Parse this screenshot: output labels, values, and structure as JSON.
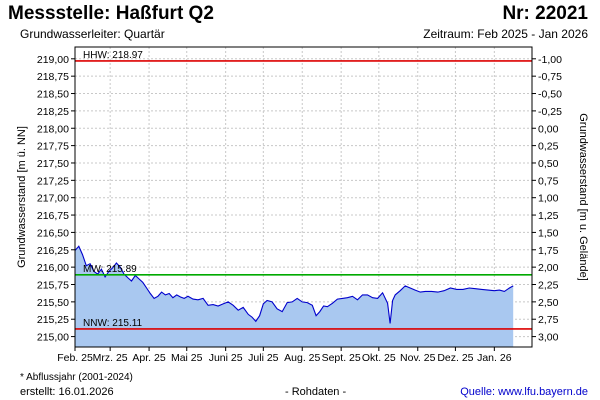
{
  "header": {
    "title": "Messstelle: Haßfurt Q2",
    "subtitle": "Grundwasserleiter: Quartär",
    "station_number": "Nr: 22021",
    "period": "Zeitraum: Feb 2025 - Jan 2026"
  },
  "footer": {
    "footnote": "* Abflussjahr (2001-2024)",
    "created": "erstellt:  16.01.2026",
    "rawdata": "- Rohdaten -",
    "source": "Quelle:  www.lfu.bayern.de"
  },
  "colors": {
    "fill": "#a9c8f0",
    "line": "#0000cc",
    "hhw": "#dd0000",
    "nnw": "#dd0000",
    "mw": "#00aa00",
    "grid": "#c8c8c8"
  },
  "chart_data": {
    "type": "area",
    "xlabel": "",
    "ylabel": "Grundwasserstand [m ü. NN]",
    "y2label": "Grundwasserstand [m u. Gelände]",
    "ylim": [
      214.85,
      219.17
    ],
    "yticks": [
      219.0,
      218.75,
      218.5,
      218.25,
      218.0,
      217.75,
      217.5,
      217.25,
      217.0,
      216.75,
      216.5,
      216.25,
      216.0,
      215.75,
      215.5,
      215.25,
      215.0
    ],
    "ytick_labels": [
      "219,00",
      "218,75",
      "218,50",
      "218,25",
      "218,00",
      "217,75",
      "217,50",
      "217,25",
      "217,00",
      "216,75",
      "216,50",
      "216,25",
      "216,00",
      "215,75",
      "215,50",
      "215,25",
      "215,00"
    ],
    "y2ticks": [
      -1.0,
      -0.75,
      -0.5,
      -0.25,
      0.0,
      0.25,
      0.5,
      0.75,
      1.0,
      1.25,
      1.5,
      1.75,
      2.0,
      2.25,
      2.5,
      2.75,
      3.0
    ],
    "y2tick_labels": [
      "-1,00",
      "-0,75",
      "-0,50",
      "-0,25",
      "0,00",
      "0,25",
      "0,50",
      "0,75",
      "1,00",
      "1,25",
      "1,50",
      "1,75",
      "2,00",
      "2,25",
      "2,50",
      "2,75",
      "3,00"
    ],
    "y2_reference": 218.0,
    "xlim": [
      "2025-02-01",
      "2026-01-31"
    ],
    "xticks": [
      {
        "label": "Feb. 25",
        "date": "2025-02-01"
      },
      {
        "label": "Mrz. 25",
        "date": "2025-03-01"
      },
      {
        "label": "Apr. 25",
        "date": "2025-04-01"
      },
      {
        "label": "Mai 25",
        "date": "2025-05-01"
      },
      {
        "label": "Juni 25",
        "date": "2025-06-01"
      },
      {
        "label": "Juli 25",
        "date": "2025-07-01"
      },
      {
        "label": "Aug. 25",
        "date": "2025-08-01"
      },
      {
        "label": "Sept. 25",
        "date": "2025-09-01"
      },
      {
        "label": "Okt. 25",
        "date": "2025-10-01"
      },
      {
        "label": "Nov. 25",
        "date": "2025-11-01"
      },
      {
        "label": "Dez. 25",
        "date": "2025-12-01"
      },
      {
        "label": "Jan. 26",
        "date": "2026-01-01"
      }
    ],
    "grid": true,
    "reference_lines": [
      {
        "name": "HHW",
        "label": "HHW: 218.97",
        "value": 218.97,
        "color": "#dd0000"
      },
      {
        "name": "MW",
        "label": "MW: 215.89",
        "value": 215.89,
        "color": "#00aa00"
      },
      {
        "name": "NNW",
        "label": "NNW: 215.11",
        "value": 215.11,
        "color": "#dd0000"
      }
    ],
    "series": [
      {
        "x": [
          "2025-02-01",
          "2025-02-04",
          "2025-02-07",
          "2025-02-10",
          "2025-02-13",
          "2025-02-16",
          "2025-02-19",
          "2025-02-22",
          "2025-02-25",
          "2025-02-28",
          "2025-03-03",
          "2025-03-06",
          "2025-03-09",
          "2025-03-12",
          "2025-03-15",
          "2025-03-18",
          "2025-03-21",
          "2025-03-24",
          "2025-03-27",
          "2025-03-30",
          "2025-04-02",
          "2025-04-05",
          "2025-04-08",
          "2025-04-11",
          "2025-04-14",
          "2025-04-17",
          "2025-04-20",
          "2025-04-23",
          "2025-04-26",
          "2025-04-29",
          "2025-05-02",
          "2025-05-06",
          "2025-05-10",
          "2025-05-14",
          "2025-05-18",
          "2025-05-22",
          "2025-05-26",
          "2025-05-30",
          "2025-06-03",
          "2025-06-07",
          "2025-06-11",
          "2025-06-15",
          "2025-06-19",
          "2025-06-22",
          "2025-06-25",
          "2025-06-28",
          "2025-07-01",
          "2025-07-04",
          "2025-07-08",
          "2025-07-12",
          "2025-07-16",
          "2025-07-20",
          "2025-07-24",
          "2025-07-28",
          "2025-08-01",
          "2025-08-05",
          "2025-08-09",
          "2025-08-12",
          "2025-08-15",
          "2025-08-18",
          "2025-08-21",
          "2025-08-25",
          "2025-08-29",
          "2025-09-02",
          "2025-09-06",
          "2025-09-10",
          "2025-09-14",
          "2025-09-18",
          "2025-09-22",
          "2025-09-26",
          "2025-09-30",
          "2025-10-04",
          "2025-10-08",
          "2025-10-10",
          "2025-10-12",
          "2025-10-14",
          "2025-10-18",
          "2025-10-22",
          "2025-10-26",
          "2025-10-30",
          "2025-11-03",
          "2025-11-07",
          "2025-11-12",
          "2025-11-17",
          "2025-11-22",
          "2025-11-27",
          "2025-12-02",
          "2025-12-07",
          "2025-12-12",
          "2025-12-17",
          "2025-12-22",
          "2025-12-27",
          "2026-01-01",
          "2026-01-05",
          "2026-01-09",
          "2026-01-13",
          "2026-01-16"
        ],
        "y": [
          216.24,
          216.3,
          216.18,
          216.02,
          216.05,
          215.94,
          215.9,
          215.97,
          215.86,
          215.94,
          215.99,
          216.06,
          216.0,
          215.9,
          215.85,
          215.8,
          215.88,
          215.83,
          215.78,
          215.7,
          215.62,
          215.55,
          215.58,
          215.64,
          215.6,
          215.62,
          215.56,
          215.6,
          215.57,
          215.55,
          215.58,
          215.54,
          215.53,
          215.55,
          215.45,
          215.46,
          215.44,
          215.47,
          215.5,
          215.45,
          215.38,
          215.42,
          215.32,
          215.28,
          215.22,
          215.3,
          215.47,
          215.52,
          215.5,
          215.4,
          215.36,
          215.49,
          215.5,
          215.55,
          215.5,
          215.49,
          215.45,
          215.3,
          215.36,
          215.44,
          215.43,
          215.48,
          215.54,
          215.55,
          215.56,
          215.58,
          215.53,
          215.6,
          215.6,
          215.56,
          215.55,
          215.63,
          215.48,
          215.19,
          215.52,
          215.6,
          215.66,
          215.73,
          215.7,
          215.67,
          215.64,
          215.65,
          215.65,
          215.64,
          215.66,
          215.7,
          215.68,
          215.68,
          215.7,
          215.69,
          215.68,
          215.67,
          215.66,
          215.67,
          215.65,
          215.7,
          215.73
        ]
      }
    ]
  }
}
